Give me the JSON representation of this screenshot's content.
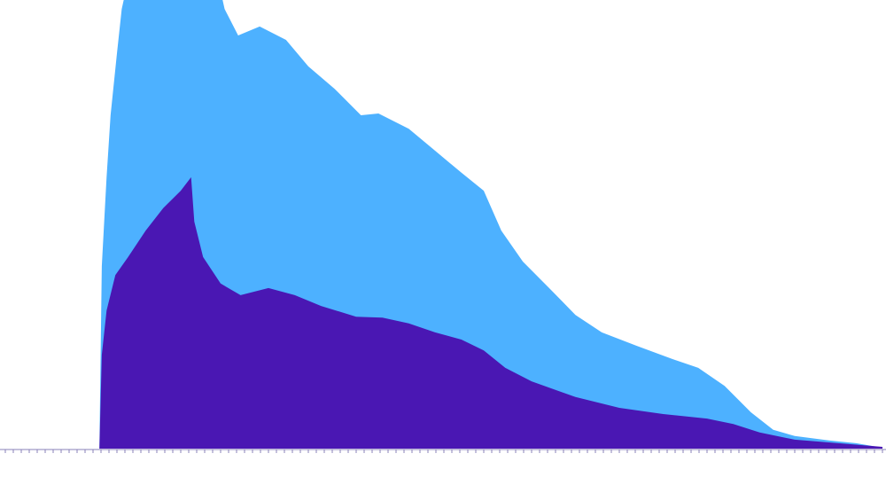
{
  "chart_data": {
    "type": "area",
    "xlim": [
      0,
      110
    ],
    "ylim": [
      0,
      100
    ],
    "xticks": [
      0,
      1,
      2,
      3,
      4,
      5,
      6,
      7,
      8,
      9,
      10,
      11,
      12,
      13,
      14,
      15,
      16,
      17,
      18,
      19,
      20,
      21,
      22,
      23,
      24,
      25,
      26,
      27,
      28,
      29,
      30,
      31,
      32,
      33,
      34,
      35,
      36,
      37,
      38,
      39,
      40,
      41,
      42,
      43,
      44,
      45,
      46,
      47,
      48,
      49,
      50,
      51,
      52,
      53,
      54,
      55,
      56,
      57,
      58,
      59,
      60,
      61,
      62,
      63,
      64,
      65,
      66,
      67,
      68,
      69,
      70,
      71,
      72,
      73,
      74,
      75,
      76,
      77,
      78,
      79,
      80,
      81,
      82,
      83,
      84,
      85,
      86,
      87,
      88,
      89,
      90,
      91,
      92,
      93,
      94,
      95,
      96,
      97,
      98,
      99,
      100,
      101,
      102,
      103,
      104,
      105,
      106,
      107,
      108,
      109,
      110
    ],
    "series": [
      {
        "color": "#4db1ff",
        "x": [
          11.8,
          12.1,
          12.7,
          13.2,
          14.0,
          14.6,
          15.1,
          27.0,
          27.5,
          29.2,
          31.9,
          35.2,
          38.0,
          41.3,
          44.6,
          46.8,
          50.6,
          53.9,
          57.2,
          60.0,
          62.2,
          64.9,
          68.2,
          71.5,
          74.8,
          79.2,
          83.6,
          86.9,
          90.2,
          93.5,
          96.3,
          99.0,
          103.4,
          106.7,
          110
        ],
        "values": [
          0,
          40.7,
          60.5,
          74.3,
          88.1,
          98.0,
          102.0,
          102.0,
          98.0,
          92.1,
          94.1,
          91.1,
          85.2,
          80.2,
          74.3,
          74.7,
          71.3,
          66.4,
          61.5,
          57.5,
          48.6,
          41.7,
          35.8,
          29.8,
          25.9,
          22.9,
          20.0,
          18.0,
          14.0,
          8.1,
          4.2,
          2.8,
          1.8,
          1.2,
          0.2
        ]
      },
      {
        "color": "#4a17b3",
        "x": [
          11.8,
          12.1,
          12.7,
          13.8,
          15.4,
          17.6,
          19.8,
          22.0,
          23.3,
          23.7,
          24.8,
          27.0,
          29.5,
          33.0,
          36.3,
          39.6,
          44.0,
          47.3,
          50.6,
          53.9,
          57.2,
          60.0,
          62.7,
          66.0,
          71.5,
          77.0,
          82.5,
          88.0,
          91.3,
          94.6,
          99.0,
          104.5,
          110
        ],
        "values": [
          0,
          20.9,
          30.8,
          38.7,
          42.7,
          48.6,
          53.6,
          57.5,
          60.5,
          50.6,
          42.7,
          36.8,
          34.2,
          35.8,
          34.2,
          31.8,
          29.4,
          29.2,
          27.9,
          25.9,
          24.3,
          21.9,
          18.0,
          15.0,
          11.5,
          9.1,
          7.7,
          6.7,
          5.5,
          3.6,
          2.0,
          1.2,
          0.4
        ]
      }
    ]
  }
}
